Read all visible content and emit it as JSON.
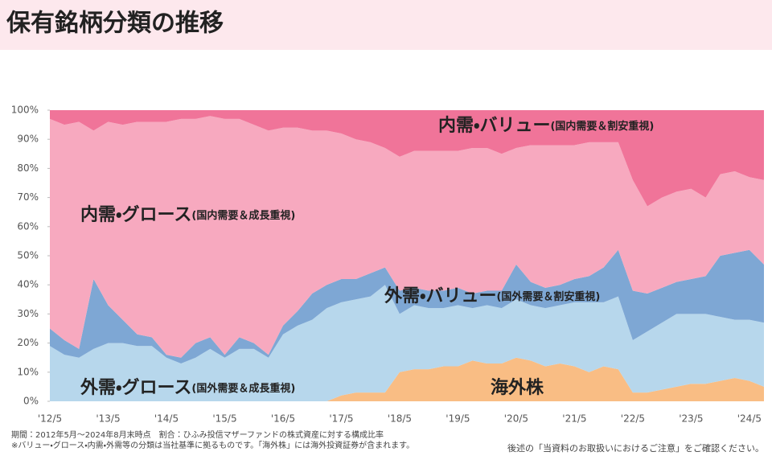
{
  "chart_data": {
    "type": "stacked-area",
    "title": "保有銘柄分類の推移",
    "categories": [
      "'12/5",
      null,
      null,
      null,
      "'13/5",
      null,
      null,
      null,
      "'14/5",
      null,
      null,
      null,
      "'15/5",
      null,
      null,
      null,
      "'16/5",
      null,
      null,
      null,
      "'17/5",
      null,
      null,
      null,
      "'18/5",
      null,
      null,
      null,
      "'19/5",
      null,
      null,
      null,
      "'20/5",
      null,
      null,
      null,
      "'21/5",
      null,
      null,
      null,
      "'22/5",
      null,
      null,
      null,
      "'23/5",
      null,
      null,
      null,
      "'24/5",
      null
    ],
    "series": [
      {
        "name": "海外株",
        "color": "#f9bd84",
        "values": [
          0,
          0,
          0,
          0,
          0,
          0,
          0,
          0,
          0,
          0,
          0,
          0,
          0,
          0,
          0,
          0,
          0,
          0,
          0,
          0,
          2,
          3,
          3,
          3,
          10,
          11,
          11,
          12,
          12,
          14,
          13,
          13,
          15,
          14,
          12,
          13,
          12,
          10,
          12,
          11,
          3,
          3,
          4,
          5,
          6,
          6,
          7,
          8,
          7,
          5
        ]
      },
      {
        "name": "外需・グロース",
        "note": "(国外需要＆成長重視)",
        "color": "#b7d7ec",
        "values": [
          19,
          16,
          15,
          18,
          20,
          20,
          19,
          19,
          15,
          13,
          15,
          18,
          15,
          18,
          18,
          15,
          23,
          26,
          28,
          32,
          32,
          32,
          33,
          37,
          20,
          22,
          21,
          20,
          21,
          18,
          20,
          19,
          20,
          19,
          20,
          20,
          22,
          24,
          22,
          25,
          18,
          21,
          23,
          25,
          24,
          24,
          22,
          20,
          21,
          22
        ]
      },
      {
        "name": "外需・バリュー",
        "note": "(国外需要＆割安重視)",
        "color": "#7ea7d4",
        "values": [
          6,
          5,
          3,
          24,
          13,
          8,
          4,
          3,
          1,
          2,
          5,
          4,
          1,
          4,
          2,
          1,
          3,
          5,
          9,
          8,
          8,
          7,
          8,
          6,
          8,
          6,
          6,
          6,
          6,
          5,
          5,
          6,
          12,
          8,
          7,
          7,
          8,
          9,
          12,
          16,
          17,
          13,
          12,
          11,
          12,
          13,
          21,
          23,
          24,
          20
        ]
      },
      {
        "name": "内需・グロース",
        "note": "(国内需要＆成長重視)",
        "color": "#f7a9bf",
        "values": [
          72,
          74,
          78,
          51,
          63,
          67,
          73,
          74,
          80,
          82,
          77,
          76,
          81,
          75,
          75,
          77,
          68,
          63,
          56,
          53,
          50,
          48,
          45,
          41,
          46,
          47,
          48,
          48,
          47,
          50,
          49,
          47,
          40,
          47,
          49,
          48,
          46,
          46,
          43,
          37,
          38,
          30,
          31,
          31,
          31,
          27,
          28,
          28,
          25,
          29
        ]
      },
      {
        "name": "内需・バリュー",
        "note": "(国内需要＆割安重視)",
        "color": "#f07499",
        "values": [
          3,
          5,
          4,
          7,
          4,
          5,
          4,
          4,
          4,
          3,
          3,
          2,
          3,
          3,
          5,
          7,
          6,
          6,
          7,
          7,
          8,
          10,
          11,
          13,
          16,
          14,
          14,
          14,
          14,
          13,
          13,
          15,
          13,
          12,
          12,
          12,
          12,
          11,
          11,
          11,
          24,
          33,
          30,
          28,
          27,
          30,
          22,
          21,
          23,
          24
        ]
      }
    ],
    "ylim": [
      0,
      100
    ],
    "yticks": [
      {
        "value": 0,
        "label": "0%"
      },
      {
        "value": 10,
        "label": "10%"
      },
      {
        "value": 20,
        "label": "20%"
      },
      {
        "value": 30,
        "label": "30%"
      },
      {
        "value": 40,
        "label": "40%"
      },
      {
        "value": 50,
        "label": "50%"
      },
      {
        "value": 60,
        "label": "60%"
      },
      {
        "value": 70,
        "label": "70%"
      },
      {
        "value": 80,
        "label": "80%"
      },
      {
        "value": 90,
        "label": "90%"
      },
      {
        "value": 100,
        "label": "100%"
      }
    ],
    "grid": false,
    "footnotes": [
      "期間：2012年5月～2024年8月末時点　割合：ひふみ投信マザーファンドの株式資産に対する構成比率",
      "※バリュー・グロース・内需・外需等の分類は当社基準に拠るものです。「海外株」には海外投資証券が含まれます。"
    ],
    "disclaimer": "後述の「当資料のお取扱いにおけるご注意」をご確認ください。"
  }
}
